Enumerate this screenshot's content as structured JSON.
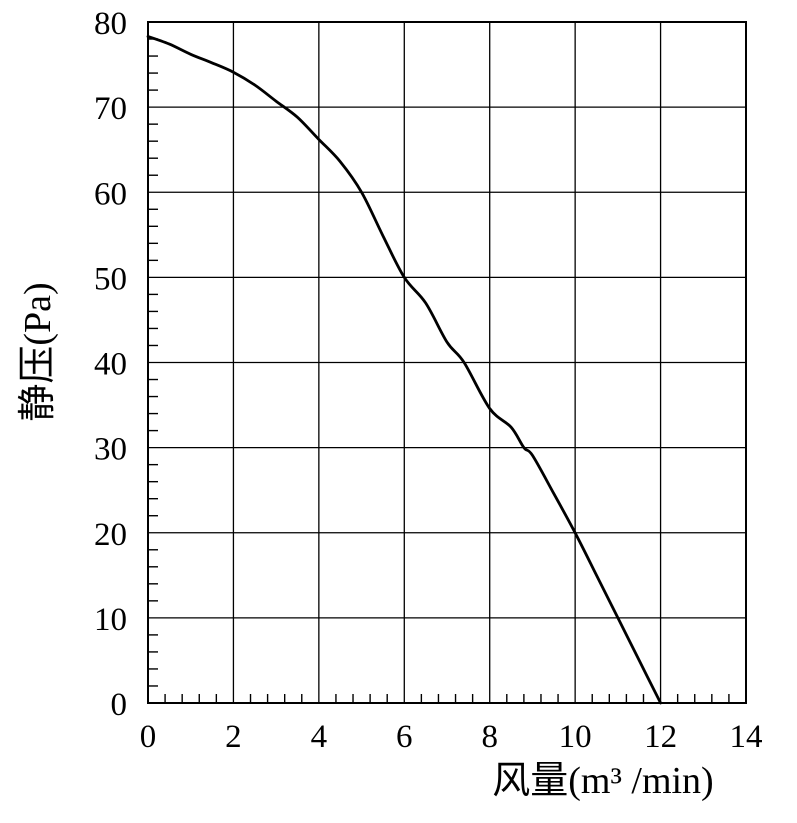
{
  "colors": {
    "background": "#ffffff",
    "curve": "#000000",
    "grid": "#000000",
    "border": "#000000",
    "text": "#000000"
  },
  "chart_data": {
    "type": "line",
    "title": "",
    "xlabel": "风量(m³ /min)",
    "ylabel": "静压(Pa)",
    "xlim": [
      0,
      14
    ],
    "ylim": [
      0,
      80
    ],
    "x_ticks": [
      0,
      2,
      4,
      6,
      8,
      10,
      12,
      14
    ],
    "x_tick_labels": [
      "0",
      "2",
      "4",
      "6",
      "8",
      "10",
      "12",
      "14"
    ],
    "y_ticks": [
      0,
      10,
      20,
      30,
      40,
      50,
      60,
      70,
      80
    ],
    "y_tick_labels": [
      "0",
      "10",
      "20",
      "30",
      "40",
      "50",
      "60",
      "70",
      "80"
    ],
    "x_minor_step": 0.4,
    "y_minor_step": 2,
    "grid": true,
    "legend": false,
    "series": [
      {
        "name": "static-pressure-vs-airflow",
        "color": "#000000",
        "points": [
          [
            0,
            78.3
          ],
          [
            0.5,
            77.4
          ],
          [
            1,
            76.2
          ],
          [
            1.5,
            75.2
          ],
          [
            2,
            74.1
          ],
          [
            2.5,
            72.6
          ],
          [
            3,
            70.7
          ],
          [
            3.5,
            68.8
          ],
          [
            4,
            66.2
          ],
          [
            4.5,
            63.6
          ],
          [
            5,
            60.0
          ],
          [
            5.5,
            54.9
          ],
          [
            6,
            50.0
          ],
          [
            6.5,
            47.0
          ],
          [
            7,
            42.4
          ],
          [
            7.4,
            40.0
          ],
          [
            8,
            34.6
          ],
          [
            8.5,
            32.4
          ],
          [
            8.8,
            30.0
          ],
          [
            9,
            29.1
          ],
          [
            9.5,
            24.6
          ],
          [
            10,
            20.0
          ],
          [
            10.5,
            15.0
          ],
          [
            11,
            10.0
          ],
          [
            11.5,
            5.0
          ],
          [
            12,
            0
          ]
        ]
      }
    ]
  }
}
